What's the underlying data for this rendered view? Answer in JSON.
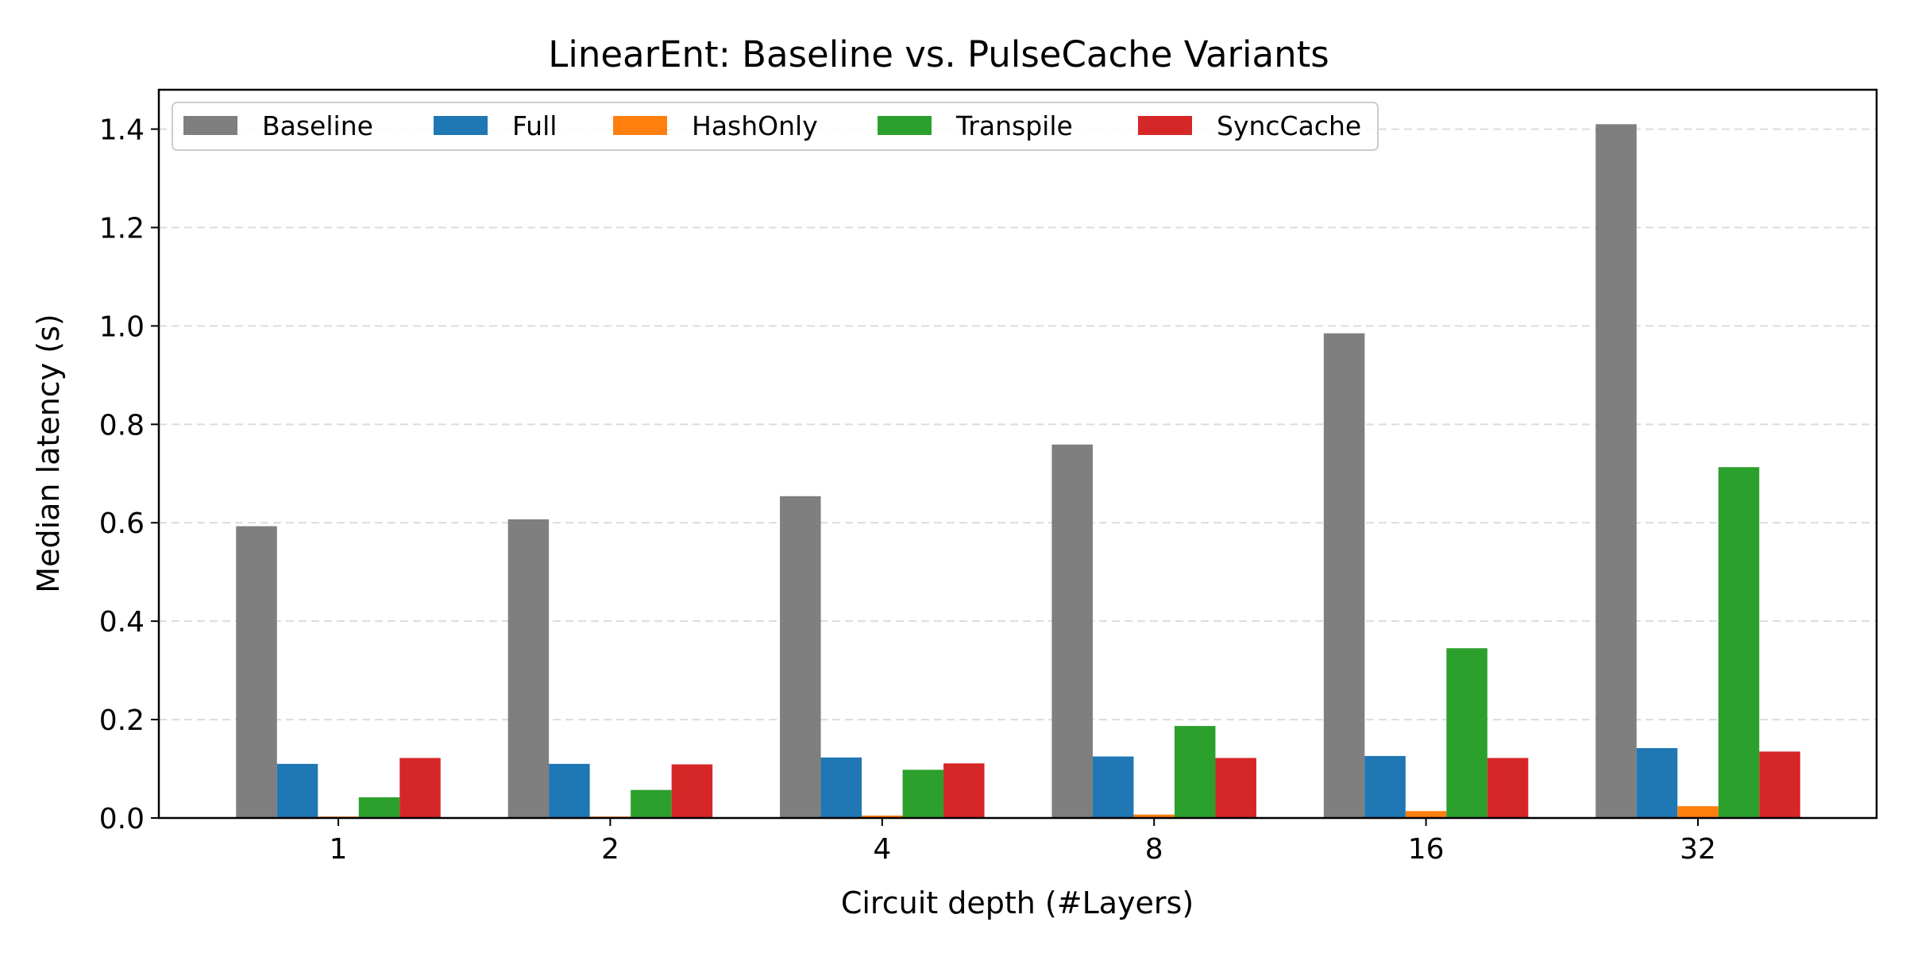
{
  "chart_data": {
    "type": "bar",
    "title": "LinearEnt: Baseline vs. PulseCache Variants",
    "xlabel": "Circuit depth (#Layers)",
    "ylabel": "Median latency (s)",
    "categories": [
      "1",
      "2",
      "4",
      "8",
      "16",
      "32"
    ],
    "ylim": [
      0,
      1.48
    ],
    "yticks": [
      0.0,
      0.2,
      0.4,
      0.6,
      0.8,
      1.0,
      1.2,
      1.4
    ],
    "ytick_labels": [
      "0.0",
      "0.2",
      "0.4",
      "0.6",
      "0.8",
      "1.0",
      "1.2",
      "1.4"
    ],
    "grid": "y-dashed",
    "legend": "top-left",
    "series": [
      {
        "name": "Baseline",
        "color": "#7f7f7f",
        "values": [
          0.593,
          0.607,
          0.654,
          0.759,
          0.985,
          1.41
        ]
      },
      {
        "name": "Full",
        "color": "#1f77b4",
        "values": [
          0.11,
          0.11,
          0.123,
          0.125,
          0.126,
          0.142
        ]
      },
      {
        "name": "HashOnly",
        "color": "#ff7f0e",
        "values": [
          0.003,
          0.003,
          0.005,
          0.007,
          0.014,
          0.024
        ]
      },
      {
        "name": "Transpile",
        "color": "#2ca02c",
        "values": [
          0.042,
          0.057,
          0.098,
          0.187,
          0.345,
          0.713
        ]
      },
      {
        "name": "SyncCache",
        "color": "#d62728",
        "values": [
          0.122,
          0.109,
          0.111,
          0.122,
          0.122,
          0.135
        ]
      }
    ]
  }
}
